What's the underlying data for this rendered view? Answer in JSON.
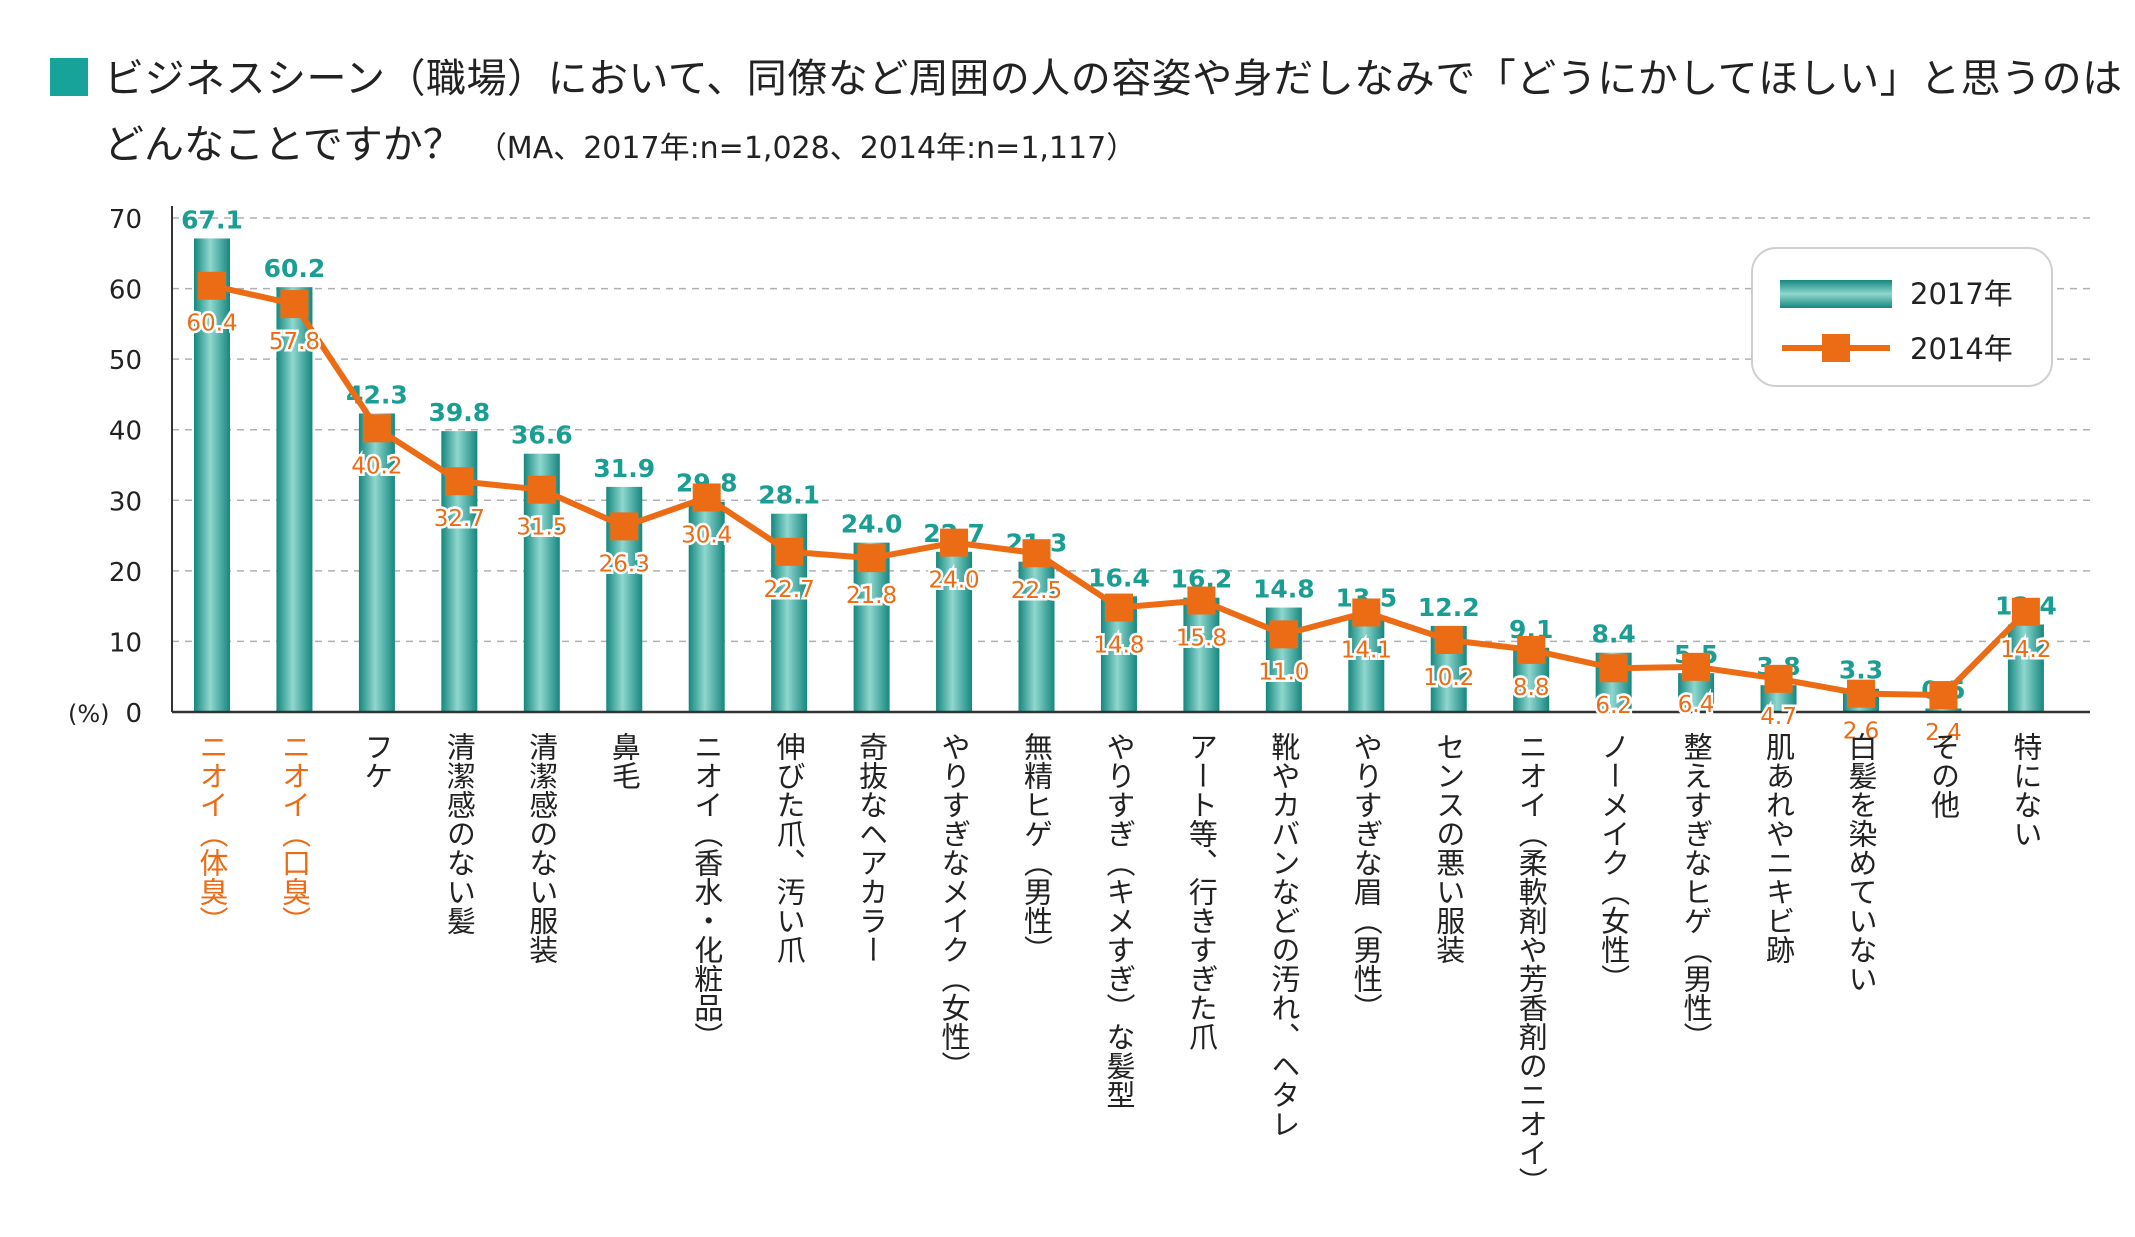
{
  "title": {
    "line1": "ビジネスシーン（職場）において、同僚など周囲の人の容姿や身だしなみで「どうにかしてほしい」と思うのは",
    "line2": "どんなことですか？",
    "subtitle": "（MA、2017年:n=1,028、2014年:n=1,117）"
  },
  "chart_data": {
    "type": "bar+line",
    "y_unit_label": "(%)",
    "ylim": [
      0,
      70
    ],
    "yticks": [
      0,
      10,
      20,
      30,
      40,
      50,
      60,
      70
    ],
    "grid": "dashed horizontal",
    "legend_position": "top-right",
    "categories": [
      "ニオイ（体臭）",
      "ニオイ（口臭）",
      "フケ",
      "清潔感のない髪",
      "清潔感のない服装",
      "鼻毛",
      "ニオイ（香水・化粧品）",
      "伸びた爪、汚い爪",
      "奇抜なヘアカラー",
      "やりすぎなメイク（女性）",
      "無精ヒゲ（男性）",
      "やりすぎ（キメすぎ）な髪型",
      "アート等、行きすぎた爪",
      "靴やカバンなどの汚れ、ヘタレ",
      "やりすぎな眉（男性）",
      "センスの悪い服装",
      "ニオイ（柔軟剤や芳香剤のニオイ）",
      "ノーメイク（女性）",
      "整えすぎなヒゲ（男性）",
      "肌あれやニキビ跡",
      "白髪を染めていない",
      "その他",
      "特にない"
    ],
    "highlighted_categories": [
      0,
      1
    ],
    "series": [
      {
        "name": "2017年",
        "kind": "bar",
        "color": "#2aa79d",
        "values": [
          67.1,
          60.2,
          42.3,
          39.8,
          36.6,
          31.9,
          29.8,
          28.1,
          24.0,
          22.7,
          21.3,
          16.4,
          16.2,
          14.8,
          13.5,
          12.2,
          9.1,
          8.4,
          5.5,
          3.8,
          3.3,
          0.5,
          12.4
        ],
        "labels": [
          "67.1",
          "60.2",
          "42.3",
          "39.8",
          "36.6",
          "31.9",
          "29.8",
          "28.1",
          "24.0",
          "22.7",
          "21.3",
          "16.4",
          "16.2",
          "14.8",
          "13.5",
          "12.2",
          "9.1",
          "8.4",
          "5.5",
          "3.8",
          "3.3",
          "0.5",
          "12.4"
        ]
      },
      {
        "name": "2014年",
        "kind": "line",
        "color": "#ec6c16",
        "values": [
          60.4,
          57.8,
          40.2,
          32.7,
          31.5,
          26.3,
          30.4,
          22.7,
          21.8,
          24.0,
          22.5,
          14.8,
          15.8,
          11.0,
          14.1,
          10.2,
          8.8,
          6.2,
          6.4,
          4.7,
          2.6,
          2.4,
          14.2
        ],
        "labels": [
          "60.4",
          "57.8",
          "40.2",
          "32.7",
          "31.5",
          "26.3",
          "30.4",
          "22.7",
          "21.8",
          "24.0",
          "22.5",
          "14.8",
          "15.8",
          "11.0",
          "14.1",
          "10.2",
          "8.8",
          "6.2",
          "6.4",
          "4.7",
          "2.6",
          "2.4",
          "14.2"
        ]
      }
    ],
    "colors": {
      "bar": "#2aa79d",
      "bar_light": "#8fd7cf",
      "bar_dark": "#15877e",
      "line": "#ec6c16",
      "bar_label": "#1a9e94",
      "highlight_text": "#ec6c16",
      "grid": "#b0b0b0"
    }
  }
}
